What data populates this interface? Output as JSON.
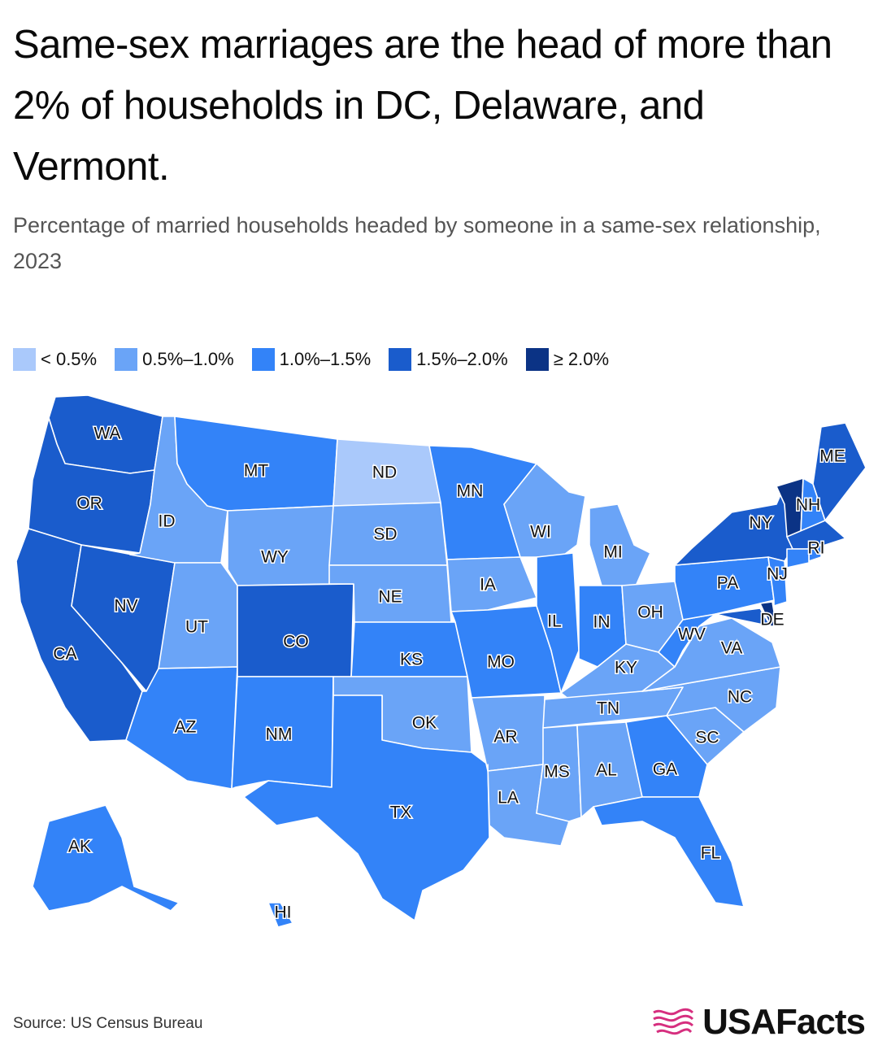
{
  "title": "Same-sex marriages are the head of more than 2% of households in DC, Delaware, and Vermont.",
  "subtitle": "Percentage of married households headed by someone in a same-sex relationship, 2023",
  "legend": [
    {
      "label": "< 0.5%",
      "color": "#aac9fb"
    },
    {
      "label": "0.5%–1.0%",
      "color": "#6aa4f7"
    },
    {
      "label": "1.0%–1.5%",
      "color": "#3383f8"
    },
    {
      "label": "1.5%–2.0%",
      "color": "#1a5ccc"
    },
    {
      "label": "≥ 2.0%",
      "color": "#0b3385"
    }
  ],
  "states": [
    {
      "abbr": "WA",
      "bin": 3
    },
    {
      "abbr": "OR",
      "bin": 3
    },
    {
      "abbr": "CA",
      "bin": 3
    },
    {
      "abbr": "NV",
      "bin": 3
    },
    {
      "abbr": "ID",
      "bin": 1
    },
    {
      "abbr": "MT",
      "bin": 2
    },
    {
      "abbr": "WY",
      "bin": 1
    },
    {
      "abbr": "UT",
      "bin": 1
    },
    {
      "abbr": "AZ",
      "bin": 2
    },
    {
      "abbr": "CO",
      "bin": 3
    },
    {
      "abbr": "NM",
      "bin": 2
    },
    {
      "abbr": "ND",
      "bin": 0
    },
    {
      "abbr": "SD",
      "bin": 1
    },
    {
      "abbr": "NE",
      "bin": 1
    },
    {
      "abbr": "KS",
      "bin": 2
    },
    {
      "abbr": "OK",
      "bin": 1
    },
    {
      "abbr": "TX",
      "bin": 2
    },
    {
      "abbr": "MN",
      "bin": 2
    },
    {
      "abbr": "IA",
      "bin": 1
    },
    {
      "abbr": "MO",
      "bin": 2
    },
    {
      "abbr": "AR",
      "bin": 1
    },
    {
      "abbr": "LA",
      "bin": 1
    },
    {
      "abbr": "WI",
      "bin": 1
    },
    {
      "abbr": "IL",
      "bin": 2
    },
    {
      "abbr": "MI",
      "bin": 1
    },
    {
      "abbr": "IN",
      "bin": 2
    },
    {
      "abbr": "OH",
      "bin": 1
    },
    {
      "abbr": "KY",
      "bin": 1
    },
    {
      "abbr": "TN",
      "bin": 1
    },
    {
      "abbr": "MS",
      "bin": 1
    },
    {
      "abbr": "AL",
      "bin": 1
    },
    {
      "abbr": "GA",
      "bin": 2
    },
    {
      "abbr": "FL",
      "bin": 2
    },
    {
      "abbr": "SC",
      "bin": 1
    },
    {
      "abbr": "NC",
      "bin": 1
    },
    {
      "abbr": "VA",
      "bin": 1
    },
    {
      "abbr": "WV",
      "bin": 2
    },
    {
      "abbr": "PA",
      "bin": 2
    },
    {
      "abbr": "NY",
      "bin": 3
    },
    {
      "abbr": "NJ",
      "bin": 2
    },
    {
      "abbr": "DE",
      "bin": 4
    },
    {
      "abbr": "VT",
      "bin": 4
    },
    {
      "abbr": "NH",
      "bin": 2
    },
    {
      "abbr": "ME",
      "bin": 3
    },
    {
      "abbr": "MA",
      "bin": 3
    },
    {
      "abbr": "RI",
      "bin": 2
    },
    {
      "abbr": "CT",
      "bin": 2
    },
    {
      "abbr": "MD",
      "bin": 3
    },
    {
      "abbr": "AK",
      "bin": 2
    },
    {
      "abbr": "HI",
      "bin": 2
    }
  ],
  "source": "Source: US Census Bureau",
  "brand": "USAFacts"
}
